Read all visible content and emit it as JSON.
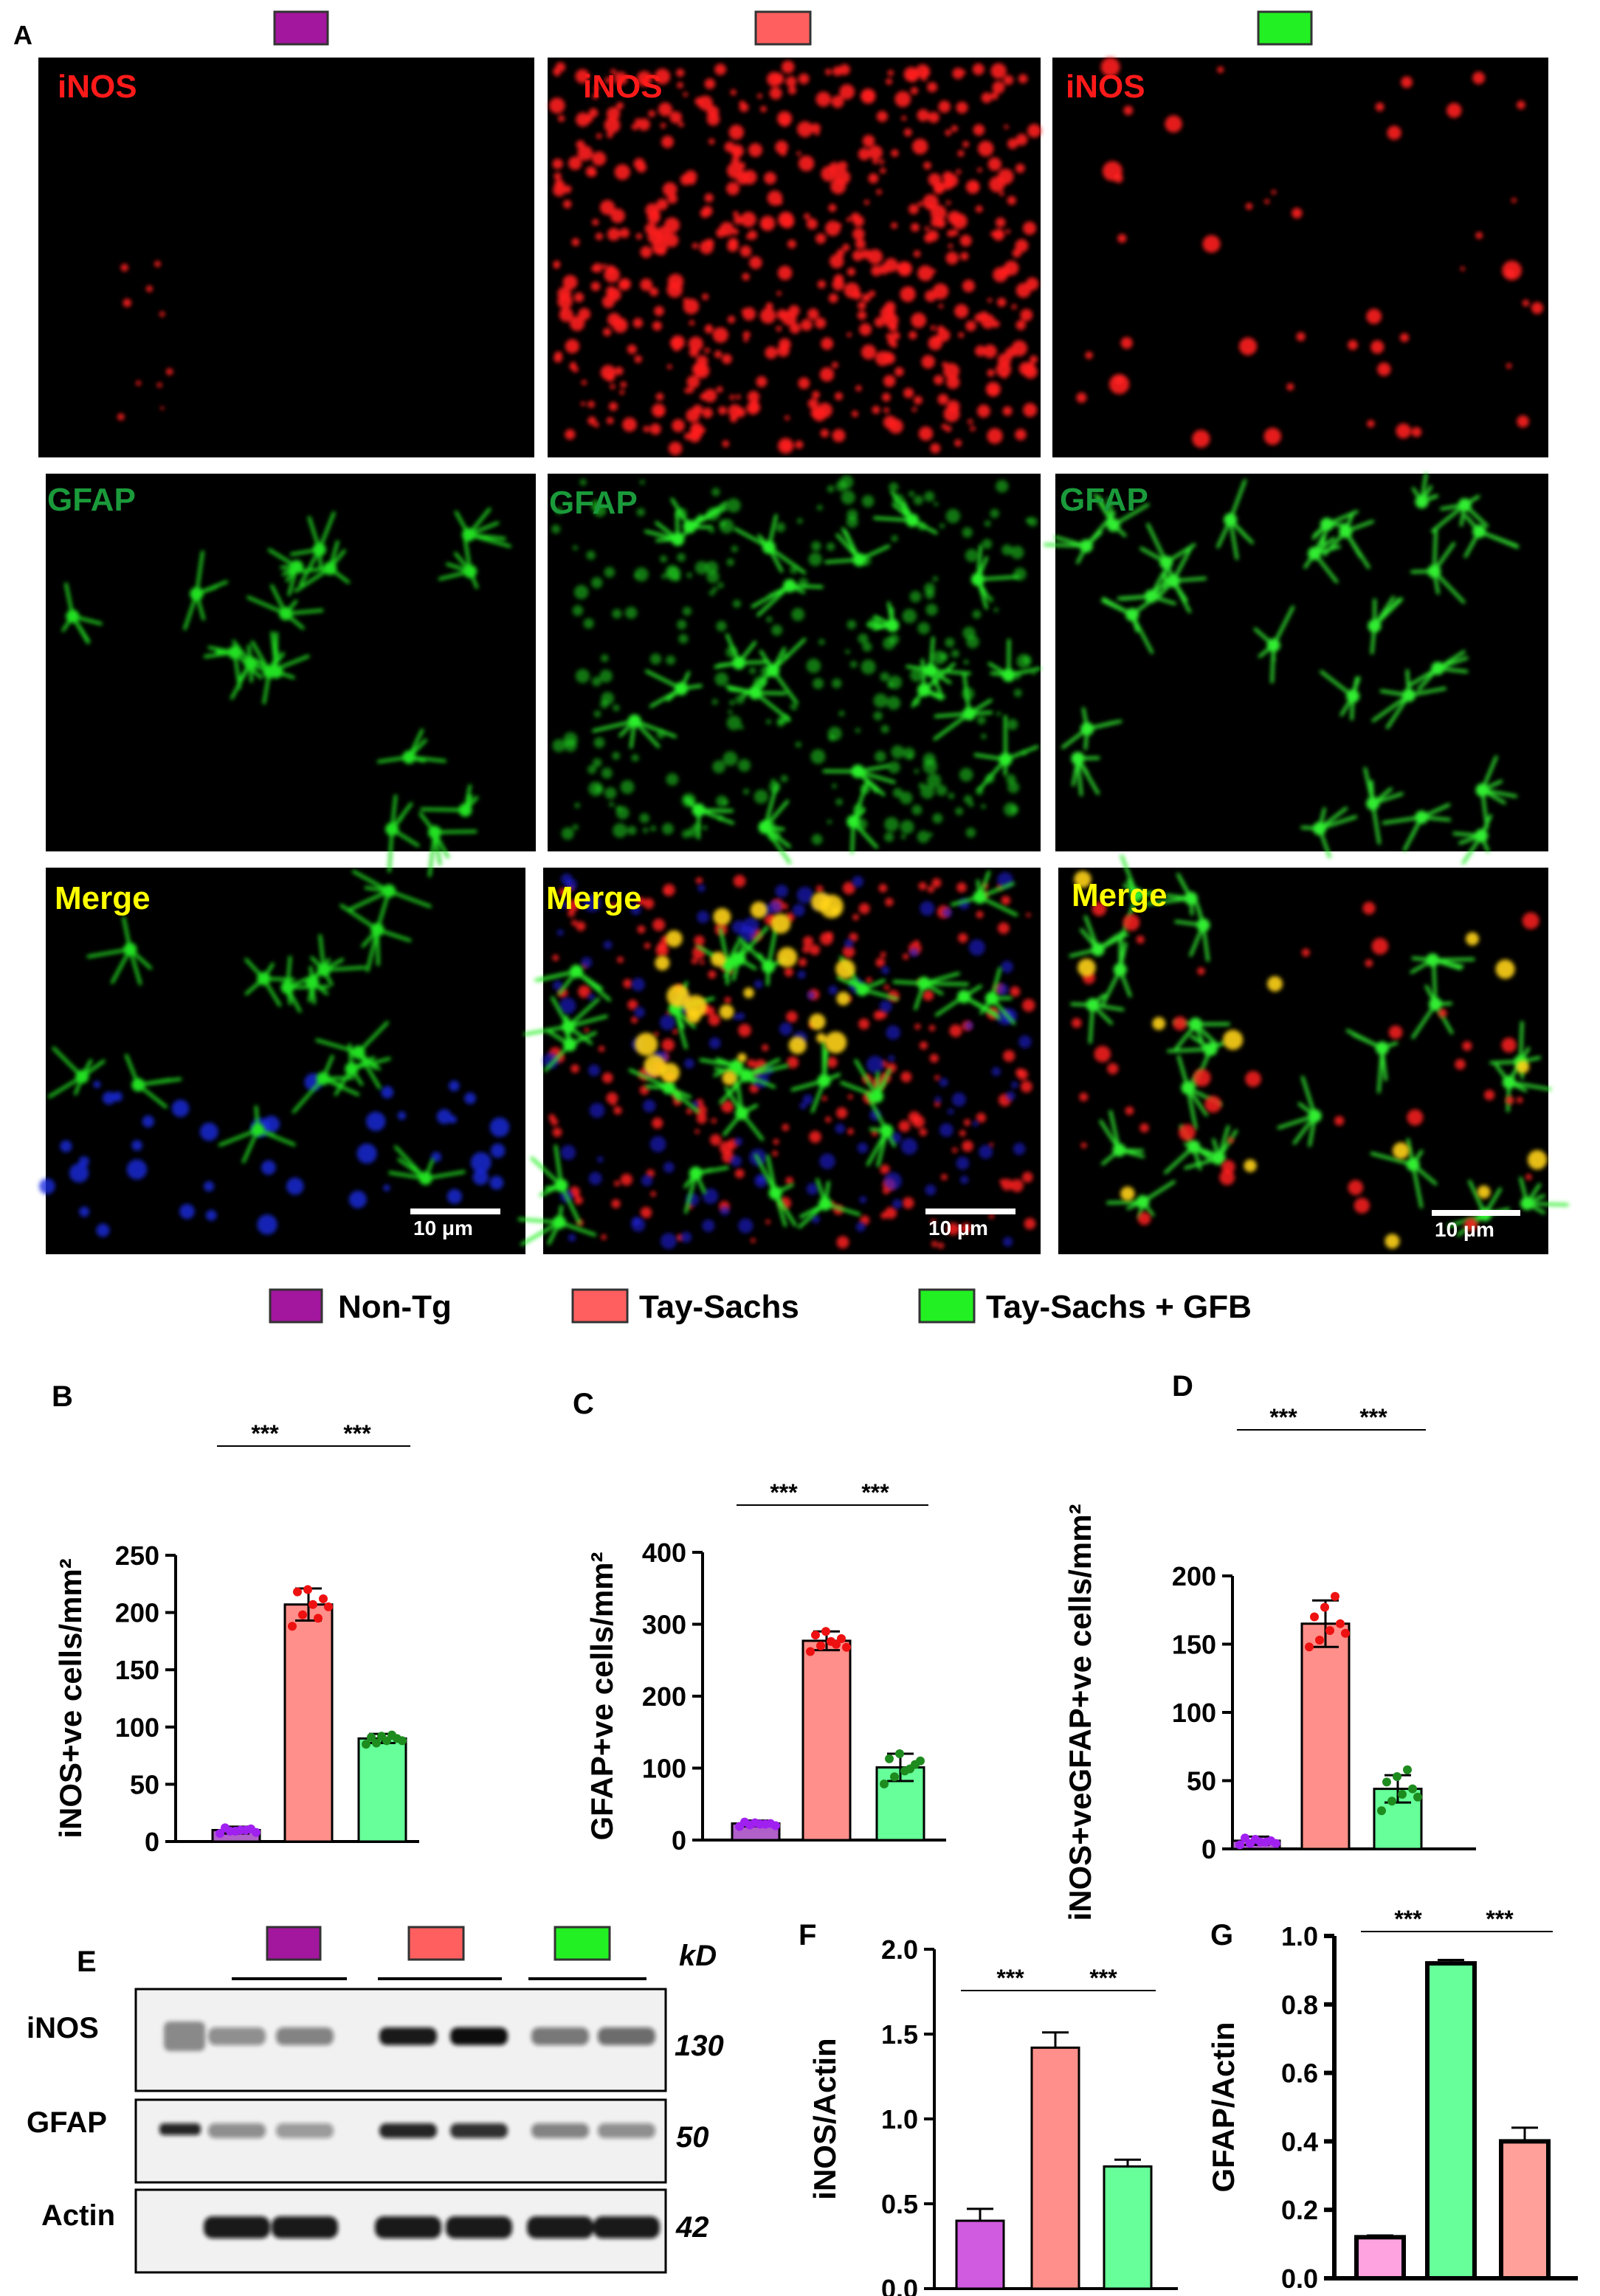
{
  "panel_letters": {
    "a": "A",
    "b": "B",
    "c": "C",
    "d": "D",
    "e": "E",
    "f": "F",
    "g": "G"
  },
  "colors": {
    "non_tg": "#a3169e",
    "tay_sachs": "#ff5f5f",
    "gfb": "#22f022",
    "bar_nontg": "#b15fc9",
    "bar_ts": "#ff8f8a",
    "bar_gfb": "#66ff99",
    "dot_nontg": "#a020f0",
    "dot_ts": "#ee1111",
    "dot_gfb": "#1e8b1e",
    "f_nontg": "#d15be0",
    "g_nontg": "#ffa3e0",
    "g_ts": "#66ff99",
    "g_gfb": "#ffa09a",
    "inos_label": "#ff1a1a",
    "gfap_label": "#1a9a3a",
    "merge_label": "#ffff00"
  },
  "micrographs": {
    "row_labels": [
      "iNOS",
      "GFAP",
      "Merge"
    ],
    "scale_bar": "10 μm"
  },
  "legend": [
    "Non-Tg",
    "Tay-Sachs",
    "Tay-Sachs + GFB"
  ],
  "western": {
    "unit": "kD",
    "rows": [
      {
        "label": "iNOS",
        "kd": "130"
      },
      {
        "label": "GFAP",
        "kd": "50"
      },
      {
        "label": "Actin",
        "kd": "42"
      }
    ]
  },
  "significance": "***",
  "chart_data": [
    {
      "panel": "B",
      "type": "bar",
      "ylabel": "iNOS+ve cells/mm²",
      "ylim": [
        0,
        250
      ],
      "ticks": [
        0,
        50,
        100,
        150,
        200,
        250
      ],
      "categories": [
        "Non-Tg",
        "Tay-Sachs",
        "Tay-Sachs + GFB"
      ],
      "values": [
        10,
        207,
        90
      ],
      "errors": [
        3,
        14,
        4
      ],
      "points": [
        [
          7,
          9,
          10,
          11,
          12,
          9,
          10,
          8
        ],
        [
          188,
          198,
          207,
          212,
          218,
          220,
          195,
          205
        ],
        [
          85,
          86,
          88,
          90,
          91,
          92,
          93,
          88
        ]
      ]
    },
    {
      "panel": "C",
      "type": "bar",
      "ylabel": "GFAP+ve cells/mm²",
      "ylim": [
        0,
        400
      ],
      "ticks": [
        0,
        100,
        200,
        300,
        400
      ],
      "categories": [
        "Non-Tg",
        "Tay-Sachs",
        "Tay-Sachs + GFB"
      ],
      "values": [
        23,
        277,
        101
      ],
      "errors": [
        4,
        13,
        19
      ],
      "points": [
        [
          19,
          21,
          22,
          23,
          25,
          24,
          22,
          20
        ],
        [
          262,
          270,
          276,
          280,
          285,
          290,
          272,
          268
        ],
        [
          78,
          88,
          96,
          105,
          113,
          120,
          99,
          110
        ]
      ]
    },
    {
      "panel": "D",
      "type": "bar",
      "ylabel": "iNOS+veGFAP+ve cells/mm²",
      "ylim": [
        0,
        200
      ],
      "ticks": [
        0,
        50,
        100,
        150,
        200
      ],
      "categories": [
        "Non-Tg",
        "Tay-Sachs",
        "Tay-Sachs + GFB"
      ],
      "values": [
        6,
        165,
        44
      ],
      "errors": [
        3,
        17,
        10
      ],
      "points": [
        [
          3,
          4,
          5,
          6,
          8,
          7,
          5,
          4
        ],
        [
          148,
          153,
          160,
          165,
          170,
          177,
          185,
          158
        ],
        [
          28,
          35,
          40,
          44,
          49,
          53,
          58,
          38
        ]
      ]
    },
    {
      "panel": "F",
      "type": "bar",
      "ylabel": "iNOS/Actin",
      "ylim": [
        0,
        2.0
      ],
      "ticks": [
        "0.0",
        "0.5",
        "1.0",
        "1.5",
        "2.0"
      ],
      "categories": [
        "Non-Tg",
        "Tay-Sachs",
        "Tay-Sachs + GFB"
      ],
      "values": [
        0.4,
        1.42,
        0.72
      ],
      "errors": [
        0.07,
        0.09,
        0.04
      ]
    },
    {
      "panel": "G",
      "type": "bar",
      "ylabel": "GFAP/Actin",
      "ylim": [
        0,
        1.0
      ],
      "ticks": [
        "0.0",
        "0.2",
        "0.4",
        "0.6",
        "0.8",
        "1.0"
      ],
      "categories": [
        "Non-Tg",
        "Tay-Sachs",
        "Tay-Sachs + GFB"
      ],
      "values": [
        0.12,
        0.92,
        0.4
      ],
      "errors": [
        0.005,
        0.01,
        0.04
      ]
    }
  ]
}
